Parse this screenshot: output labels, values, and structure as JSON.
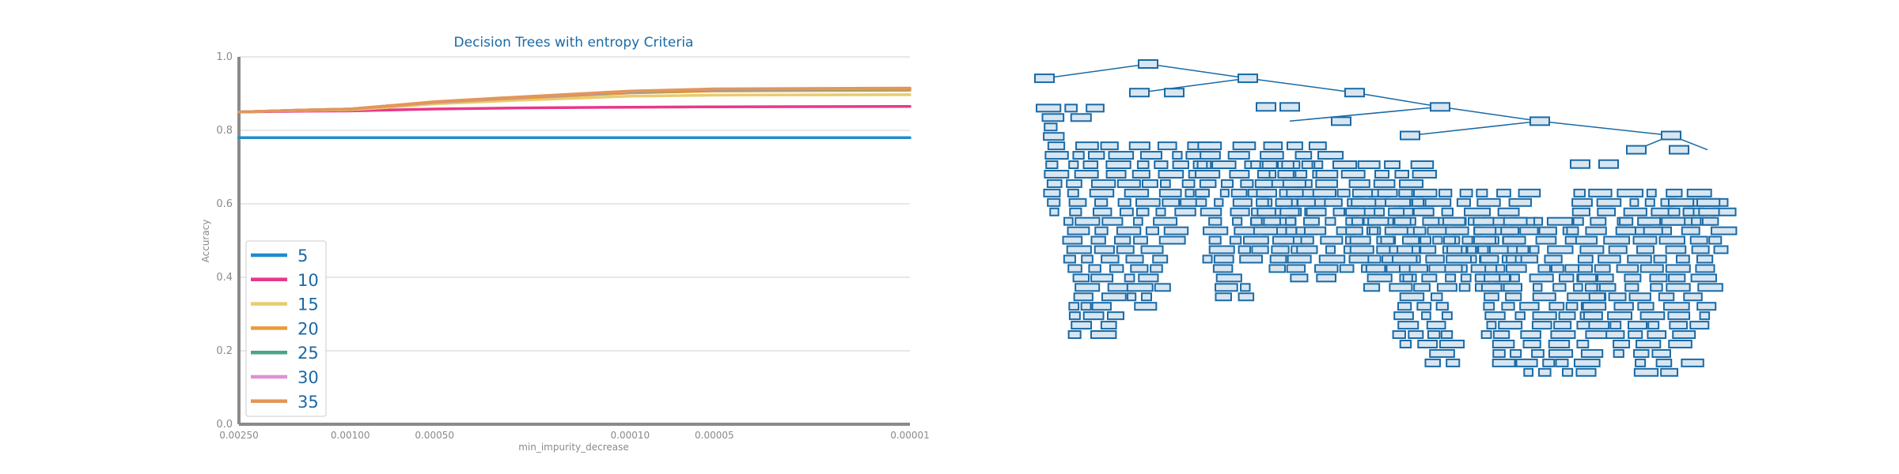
{
  "chart_data": [
    {
      "type": "line",
      "title": "Decision Trees with entropy Criteria",
      "xlabel": "min_impurity_decrease",
      "ylabel": "Accuracy",
      "x_scale": "log-reversed",
      "x_ticks": [
        {
          "value": 0.0025,
          "label": "0.00250"
        },
        {
          "value": 0.001,
          "label": "0.00100"
        },
        {
          "value": 0.0005,
          "label": "0.00050"
        },
        {
          "value": 0.0001,
          "label": "0.00010"
        },
        {
          "value": 5e-05,
          "label": "0.00005"
        },
        {
          "value": 1e-05,
          "label": "0.00001"
        }
      ],
      "y_ticks": [
        "0.0",
        "0.2",
        "0.4",
        "0.6",
        "0.8",
        "1.0"
      ],
      "ylim": [
        0,
        1
      ],
      "grid": "horizontal",
      "legend_position": "lower-left",
      "x": [
        0.0025,
        0.002,
        0.0015,
        0.001,
        0.00075,
        0.0005,
        0.00025,
        0.0001,
        5e-05,
        1e-05
      ],
      "series": [
        {
          "name": "5",
          "color": "#1f8dcb",
          "values": [
            0.78,
            0.78,
            0.78,
            0.78,
            0.78,
            0.78,
            0.78,
            0.78,
            0.78,
            0.78
          ]
        },
        {
          "name": "10",
          "color": "#e8388a",
          "values": [
            0.85,
            0.851,
            0.852,
            0.853,
            0.855,
            0.858,
            0.861,
            0.863,
            0.864,
            0.865
          ]
        },
        {
          "name": "15",
          "color": "#e8cc6e",
          "values": [
            0.85,
            0.852,
            0.854,
            0.856,
            0.862,
            0.872,
            0.882,
            0.893,
            0.896,
            0.897
          ]
        },
        {
          "name": "20",
          "color": "#e89a3a",
          "values": [
            0.85,
            0.852,
            0.855,
            0.858,
            0.865,
            0.876,
            0.888,
            0.902,
            0.907,
            0.909
          ]
        },
        {
          "name": "25",
          "color": "#4aa585",
          "values": [
            0.85,
            0.852,
            0.855,
            0.858,
            0.866,
            0.877,
            0.89,
            0.905,
            0.911,
            0.913
          ]
        },
        {
          "name": "30",
          "color": "#e08fd4",
          "values": [
            0.85,
            0.852,
            0.855,
            0.858,
            0.866,
            0.877,
            0.89,
            0.906,
            0.912,
            0.914
          ]
        },
        {
          "name": "35",
          "color": "#e39659",
          "values": [
            0.85,
            0.852,
            0.855,
            0.858,
            0.866,
            0.878,
            0.891,
            0.907,
            0.913,
            0.915
          ]
        }
      ]
    }
  ],
  "tree_diagram": {
    "description_label": "decision tree",
    "node_color": "#1a6aa5",
    "node_fill": "#d8e6f2"
  }
}
